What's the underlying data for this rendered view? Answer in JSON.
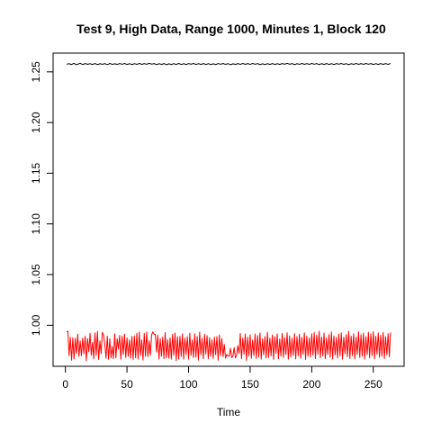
{
  "chart_data": {
    "type": "line",
    "title": "Test 9, High Data, Range 1000, Minutes 1, Block 120",
    "xlabel": "Time",
    "ylabel": "",
    "xlim": [
      -10,
      275
    ],
    "ylim": [
      0.9595,
      1.2685
    ],
    "x_ticks": [
      0,
      50,
      100,
      150,
      200,
      250
    ],
    "y_ticks": [
      1.0,
      1.05,
      1.1,
      1.15,
      1.2,
      1.25
    ],
    "y_tick_labels": [
      "1.00",
      "1.05",
      "1.10",
      "1.15",
      "1.20",
      "1.25"
    ],
    "grid": false,
    "legend": "none",
    "series": [
      {
        "color": "#000000",
        "x_start": 1,
        "x_end": 264,
        "values": [
          1.2575,
          1.2578,
          1.2581,
          1.2576,
          1.2572,
          1.2579,
          1.2583,
          1.2577,
          1.2571,
          1.2575,
          1.258,
          1.2584,
          1.2578,
          1.2573,
          1.2576,
          1.2582,
          1.2579,
          1.2574,
          1.2577,
          1.2581,
          1.2576,
          1.2573,
          1.2578,
          1.2582,
          1.2577,
          1.2572,
          1.2575,
          1.2581,
          1.2578,
          1.2574,
          1.2578,
          1.2582,
          1.2576,
          1.2571,
          1.2576,
          1.2583,
          1.2579,
          1.2574,
          1.2576,
          1.258,
          1.2577,
          1.2573,
          1.2577,
          1.2582,
          1.2579,
          1.2575,
          1.2578,
          1.2583,
          1.2578,
          1.2573,
          1.2576,
          1.2581,
          1.2577,
          1.2572,
          1.2576,
          1.2581,
          1.2578,
          1.2574,
          1.2578,
          1.2583,
          1.2579,
          1.2574,
          1.2577,
          1.2582,
          1.2578,
          1.2575,
          1.2579,
          1.2584,
          1.258,
          1.2576,
          1.2578,
          1.2582,
          1.2577,
          1.2572,
          1.2575,
          1.2581,
          1.2578,
          1.2573,
          1.2577,
          1.2582,
          1.2577,
          1.2571,
          1.2574,
          1.258,
          1.2576,
          1.2572,
          1.2577,
          1.2581,
          1.2576,
          1.2573,
          1.2578,
          1.2583,
          1.2578,
          1.2573,
          1.2576,
          1.2581,
          1.2577,
          1.2572,
          1.2576,
          1.2582,
          1.2579,
          1.2575,
          1.2579,
          1.2583,
          1.2578,
          1.2573,
          1.2576,
          1.2581,
          1.2577,
          1.2573,
          1.2577,
          1.2582,
          1.2578,
          1.2573,
          1.2576,
          1.2581,
          1.2577,
          1.2572,
          1.2575,
          1.258,
          1.2576,
          1.2572,
          1.2576,
          1.2582,
          1.2579,
          1.2575,
          1.2578,
          1.2583,
          1.2578,
          1.2574,
          1.2577,
          1.2581,
          1.2576,
          1.2571,
          1.2574,
          1.258,
          1.2577,
          1.2573,
          1.2577,
          1.2582,
          1.2578,
          1.2574,
          1.2578,
          1.2583,
          1.2579,
          1.2574,
          1.2577,
          1.2582,
          1.2578,
          1.2574,
          1.2578,
          1.2583,
          1.2579,
          1.2575,
          1.2578,
          1.2582,
          1.2577,
          1.2572,
          1.2575,
          1.258,
          1.2576,
          1.2572,
          1.2576,
          1.2581,
          1.2577,
          1.2573,
          1.2577,
          1.2582,
          1.2578,
          1.2573,
          1.2576,
          1.2581,
          1.2577,
          1.2573,
          1.2577,
          1.2582,
          1.2579,
          1.2575,
          1.2579,
          1.2584,
          1.258,
          1.2575,
          1.2578,
          1.2582,
          1.2577,
          1.2572,
          1.2575,
          1.2581,
          1.2578,
          1.2574,
          1.2578,
          1.2583,
          1.2579,
          1.2574,
          1.2577,
          1.2582,
          1.2578,
          1.2574,
          1.2578,
          1.2583,
          1.2579,
          1.2575,
          1.2578,
          1.2582,
          1.2577,
          1.2572,
          1.2576,
          1.2581,
          1.2577,
          1.2573,
          1.2577,
          1.2582,
          1.2578,
          1.2573,
          1.2576,
          1.2581,
          1.2577,
          1.2572,
          1.2576,
          1.2582,
          1.2579,
          1.2575,
          1.2579,
          1.2583,
          1.2578,
          1.2574,
          1.2577,
          1.2581,
          1.2576,
          1.2572,
          1.2575,
          1.2581,
          1.2578,
          1.2574,
          1.2578,
          1.2583,
          1.2579,
          1.2574,
          1.2577,
          1.2582,
          1.2578,
          1.2574,
          1.2578,
          1.2583,
          1.2579,
          1.2575,
          1.2578,
          1.2582,
          1.2577,
          1.2573,
          1.2576,
          1.2581,
          1.2577,
          1.2573,
          1.2577,
          1.2582,
          1.2578,
          1.2574,
          1.2577,
          1.2582,
          1.2578,
          1.2574,
          1.2578,
          1.2583
        ]
      },
      {
        "color": "#ff0000",
        "x_start": 1,
        "x_end": 264,
        "values": [
          0.9935,
          0.9942,
          0.9699,
          0.988,
          0.9655,
          0.9877,
          0.9667,
          0.9871,
          0.9721,
          0.9912,
          0.9692,
          0.9845,
          0.97,
          0.9874,
          0.9719,
          0.9891,
          0.9651,
          0.9868,
          0.9737,
          0.9921,
          0.9703,
          0.983,
          0.9669,
          0.9925,
          0.9703,
          0.994,
          0.9662,
          0.9846,
          0.972,
          0.993,
          0.9902,
          0.9812,
          0.9674,
          0.9893,
          0.9664,
          0.9867,
          0.9678,
          0.9791,
          0.9671,
          0.9916,
          0.9678,
          0.9867,
          0.9764,
          0.9899,
          0.9664,
          0.9892,
          0.9713,
          0.9912,
          0.9681,
          0.9876,
          0.9695,
          0.9856,
          0.9675,
          0.989,
          0.9662,
          0.9896,
          0.9678,
          0.9921,
          0.9665,
          0.9932,
          0.9702,
          0.9855,
          0.9656,
          0.9921,
          0.9694,
          0.9934,
          0.9691,
          0.9847,
          0.9704,
          0.9904,
          0.9935,
          0.9912,
          0.9911,
          0.9735,
          0.9901,
          0.9666,
          0.9869,
          0.9694,
          0.9882,
          0.9671,
          0.9928,
          0.9678,
          0.9857,
          0.9674,
          0.9876,
          0.9665,
          0.9911,
          0.9703,
          0.9923,
          0.9652,
          0.9887,
          0.9667,
          0.9891,
          0.9693,
          0.9916,
          0.9665,
          0.9872,
          0.9711,
          0.9889,
          0.9665,
          0.9922,
          0.9703,
          0.9855,
          0.9681,
          0.9917,
          0.9686,
          0.9889,
          0.9656,
          0.9932,
          0.971,
          0.987,
          0.967,
          0.991,
          0.9716,
          0.9898,
          0.9671,
          0.9878,
          0.9695,
          0.9857,
          0.9672,
          0.9882,
          0.9709,
          0.9888,
          0.9655,
          0.9904,
          0.9701,
          0.9869,
          0.9691,
          0.9811,
          0.9675,
          0.9712,
          0.97,
          0.9695,
          0.9773,
          0.9681,
          0.9692,
          0.9781,
          0.9678,
          0.9702,
          0.9798,
          0.9723,
          0.9919,
          0.9668,
          0.9874,
          0.9715,
          0.9913,
          0.9654,
          0.9882,
          0.9699,
          0.9906,
          0.9674,
          0.9855,
          0.9701,
          0.9914,
          0.9672,
          0.9899,
          0.9688,
          0.9924,
          0.9665,
          0.9866,
          0.9708,
          0.9889,
          0.9677,
          0.9931,
          0.9682,
          0.9873,
          0.9698,
          0.9905,
          0.9663,
          0.9888,
          0.9724,
          0.9915,
          0.9669,
          0.9865,
          0.9695,
          0.992,
          0.9682,
          0.9878,
          0.9711,
          0.9926,
          0.9665,
          0.9895,
          0.9687,
          0.9871,
          0.9703,
          0.9918,
          0.9667,
          0.9888,
          0.9699,
          0.9911,
          0.9674,
          0.9879,
          0.9713,
          0.9925,
          0.9662,
          0.9893,
          0.9695,
          0.9874,
          0.9685,
          0.9916,
          0.9704,
          0.9929,
          0.9671,
          0.9902,
          0.9715,
          0.9941,
          0.9678,
          0.9883,
          0.9697,
          0.9922,
          0.9669,
          0.9874,
          0.9712,
          0.9908,
          0.9684,
          0.9933,
          0.9667,
          0.9895,
          0.9706,
          0.9879,
          0.9676,
          0.9913,
          0.9698,
          0.9926,
          0.9665,
          0.9884,
          0.9719,
          0.9909,
          0.9688,
          0.9941,
          0.9672,
          0.9893,
          0.9701,
          0.9917,
          0.9668,
          0.9882,
          0.9712,
          0.9937,
          0.9681,
          0.9905,
          0.9696,
          0.9923,
          0.9665,
          0.9887,
          0.9709,
          0.9931,
          0.9677,
          0.9915,
          0.9702,
          0.9938,
          0.9668,
          0.9891,
          0.9714,
          0.9925,
          0.9683,
          0.9902,
          0.9696,
          0.9929,
          0.9671,
          0.9886,
          0.9708,
          0.9918,
          0.9689,
          0.9928
        ]
      }
    ]
  }
}
